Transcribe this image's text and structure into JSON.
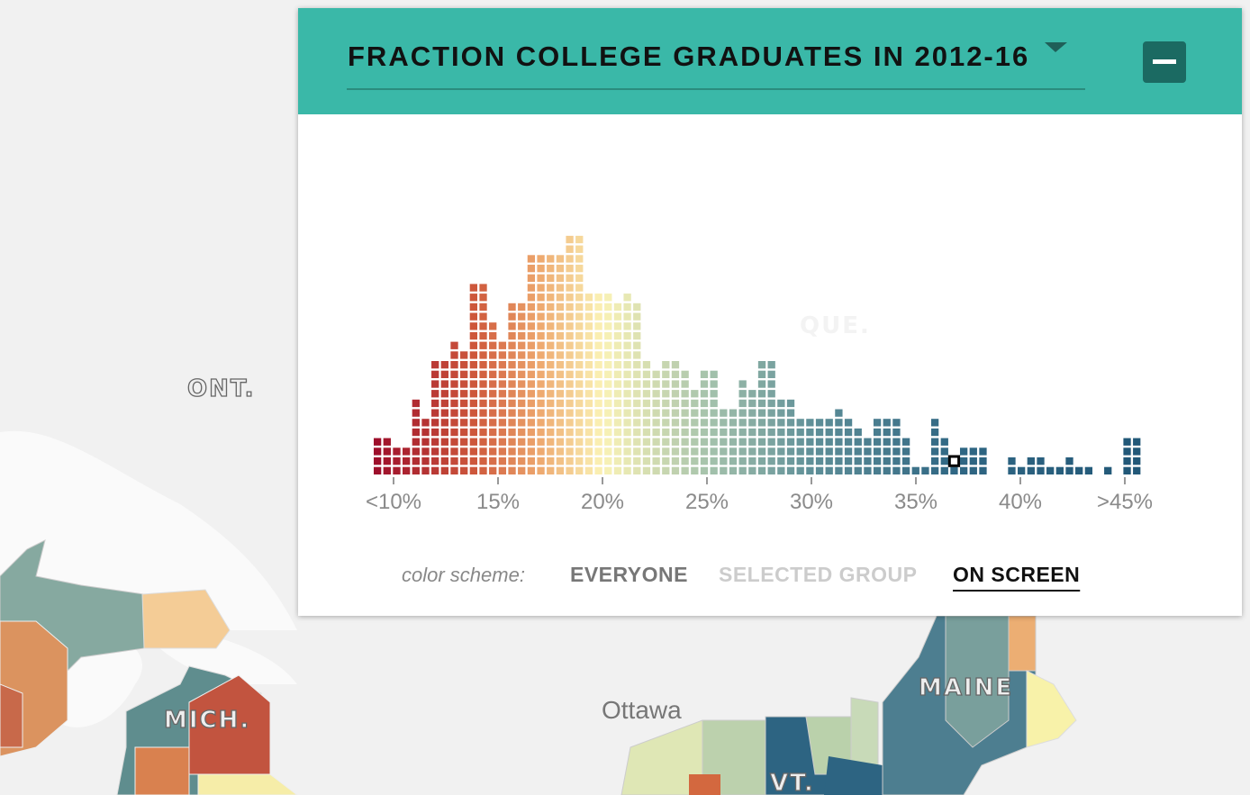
{
  "map": {
    "labels": [
      "ONT.",
      "MICH.",
      "Ottawa",
      "MAINE",
      "VT.",
      "QUE."
    ]
  },
  "panel": {
    "color_scheme": {
      "label": "color scheme:",
      "options": [
        "EVERYONE",
        "SELECTED GROUP",
        "ON SCREEN"
      ],
      "active": 2
    }
  },
  "chart_data": {
    "type": "histogram",
    "title": "FRACTION COLLEGE GRADUATES IN 2012-16",
    "bins": [
      9,
      9.46,
      9.92,
      10.38,
      10.84,
      11.3,
      11.76,
      12.22,
      12.68,
      13.14,
      13.6,
      14.06,
      14.52,
      14.98,
      15.44,
      15.9,
      16.36,
      16.82,
      17.28,
      17.74,
      18.2,
      18.66,
      19.12,
      19.58,
      20.04,
      20.5,
      20.96,
      21.42,
      21.88,
      22.34,
      22.8,
      23.26,
      23.72,
      24.18,
      24.64,
      25.1,
      25.56,
      26.02,
      26.48,
      26.94,
      27.4,
      27.86,
      28.32,
      28.78,
      29.24,
      29.7,
      30.16,
      30.62,
      31.08,
      31.54,
      32,
      32.46,
      32.92,
      33.38,
      33.84,
      34.3,
      34.76,
      35.22,
      35.68,
      36.14,
      36.6,
      37.06,
      37.52,
      37.98,
      38.44,
      38.9,
      39.36,
      39.82,
      40.28,
      40.74,
      41.2,
      41.66,
      42.12,
      42.58,
      43.04,
      43.5,
      43.96,
      44.42,
      44.88,
      45.34,
      45.8
    ],
    "values": [
      4,
      4,
      3,
      3,
      8,
      6,
      12,
      12,
      14,
      13,
      20,
      20,
      16,
      14,
      18,
      18,
      23,
      23,
      23,
      23,
      25,
      25,
      19,
      19,
      19,
      18,
      19,
      18,
      12,
      11,
      12,
      12,
      11,
      9,
      11,
      11,
      7,
      7,
      10,
      9,
      12,
      12,
      8,
      8,
      6,
      6,
      6,
      6,
      7,
      6,
      5,
      4,
      6,
      6,
      6,
      4,
      1,
      1,
      6,
      4,
      2,
      3,
      3,
      3,
      0,
      0,
      2,
      1,
      2,
      2,
      1,
      1,
      2,
      1,
      1,
      0,
      1,
      0,
      4,
      4
    ],
    "highlight_bin": 60,
    "color_stops": [
      {
        "value": 9,
        "color": "#9b0b2a"
      },
      {
        "value": 14,
        "color": "#cf5a3c"
      },
      {
        "value": 17,
        "color": "#eea96f"
      },
      {
        "value": 20,
        "color": "#fbf3b5"
      },
      {
        "value": 25,
        "color": "#a6c3ac"
      },
      {
        "value": 30,
        "color": "#5e8f98"
      },
      {
        "value": 37,
        "color": "#2f6683"
      },
      {
        "value": 46,
        "color": "#215777"
      }
    ],
    "xlim": [
      8.5,
      46.5
    ],
    "xticks": [
      {
        "value": 10,
        "label": "<10%"
      },
      {
        "value": 15,
        "label": "15%"
      },
      {
        "value": 20,
        "label": "20%"
      },
      {
        "value": 25,
        "label": "25%"
      },
      {
        "value": 30,
        "label": "30%"
      },
      {
        "value": 35,
        "label": "35%"
      },
      {
        "value": 40,
        "label": "40%"
      },
      {
        "value": 45,
        "label": ">45%"
      }
    ]
  }
}
